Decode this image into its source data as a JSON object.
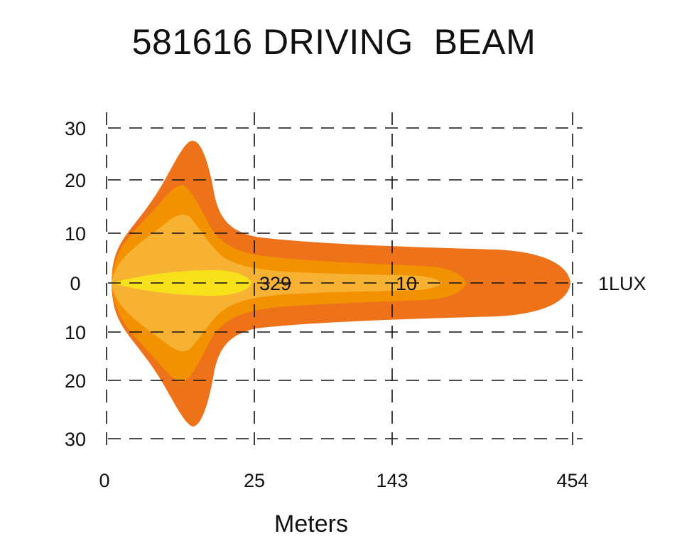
{
  "title": "581616 DRIVING  BEAM",
  "colors": {
    "outer": "#ee7219",
    "band2": "#f39200",
    "band3": "#f7b233",
    "core": "#f6e11a"
  },
  "chart_data": {
    "type": "area",
    "title": "581616 DRIVING  BEAM",
    "xlabel": "Meters",
    "ylabel": "",
    "x_ticks": [
      "0",
      "25",
      "143",
      "454"
    ],
    "y_ticks": [
      "30",
      "20",
      "10",
      "0",
      "10",
      "20",
      "30"
    ],
    "grid": true,
    "isolux_labels": [
      {
        "text": "329",
        "x": "25"
      },
      {
        "text": "10",
        "x": "143"
      },
      {
        "text": "1LUX",
        "x": "454"
      }
    ]
  }
}
